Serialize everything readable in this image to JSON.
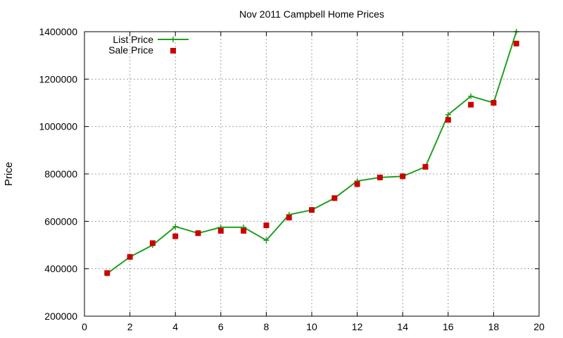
{
  "chart_data": {
    "type": "line",
    "title": "Nov 2011 Campbell Home Prices",
    "xlabel": "",
    "ylabel": "Price",
    "xlim": [
      0,
      20
    ],
    "ylim": [
      200000,
      1400000
    ],
    "xticks": [
      0,
      2,
      4,
      6,
      8,
      10,
      12,
      14,
      16,
      18,
      20
    ],
    "yticks": [
      200000,
      400000,
      600000,
      800000,
      1000000,
      1200000,
      1400000
    ],
    "grid": true,
    "legend_position": "top-left",
    "series": [
      {
        "name": "List Price",
        "style": "line-with-plus-markers",
        "color": "#1fa01f",
        "x": [
          1,
          2,
          3,
          4,
          5,
          6,
          7,
          8,
          9,
          10,
          11,
          12,
          13,
          14,
          15,
          16,
          17,
          18,
          19
        ],
        "y": [
          380000,
          450000,
          500000,
          578000,
          550000,
          575000,
          575000,
          520000,
          628000,
          648000,
          698000,
          770000,
          785000,
          790000,
          830000,
          1050000,
          1128000,
          1100000,
          1400000
        ]
      },
      {
        "name": "Sale Price",
        "style": "square-markers",
        "color": "#cc0000",
        "x": [
          1,
          2,
          3,
          4,
          5,
          6,
          7,
          8,
          9,
          10,
          11,
          12,
          13,
          14,
          15,
          16,
          17,
          18,
          19
        ],
        "y": [
          382000,
          450000,
          508000,
          537000,
          550000,
          560000,
          560000,
          583000,
          616000,
          648000,
          698000,
          757000,
          785000,
          790000,
          830000,
          1028000,
          1092000,
          1100000,
          1350000
        ]
      }
    ]
  }
}
